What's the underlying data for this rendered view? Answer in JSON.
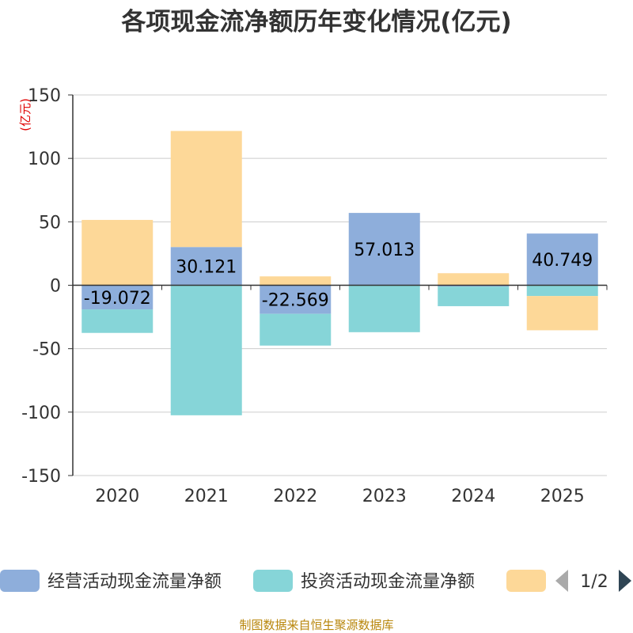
{
  "chart_data": {
    "type": "bar",
    "stacked": true,
    "title": "各项现金流净额历年变化情况(亿元)",
    "ylabel": "(亿元)",
    "categories": [
      "2020",
      "2021",
      "2022",
      "2023",
      "2024",
      "2025"
    ],
    "ylim": [
      -150,
      150
    ],
    "yticks": [
      150,
      100,
      50,
      0,
      -50,
      -100,
      -150
    ],
    "grid": true,
    "series": [
      {
        "name": "经营活动现金流量净额",
        "color": "#8eaedb",
        "values": [
          -19.072,
          30.121,
          -22.569,
          57.013,
          -1.0,
          40.749
        ],
        "labels": [
          "-19.072",
          "30.121",
          "-22.569",
          "57.013",
          "",
          "40.749"
        ]
      },
      {
        "name": "投资活动现金流量净额",
        "color": "#86d5d8",
        "values": [
          -18.5,
          -102.5,
          -25.0,
          -37.0,
          -15.5,
          -8.5
        ]
      },
      {
        "name": "",
        "color": "#fdd898",
        "values": [
          51.5,
          91.5,
          7.0,
          0,
          9.5,
          -27.0
        ]
      }
    ],
    "legend": {
      "position": "bottom",
      "page": "1/2"
    },
    "source": "制图数据来自恒生聚源数据库"
  }
}
